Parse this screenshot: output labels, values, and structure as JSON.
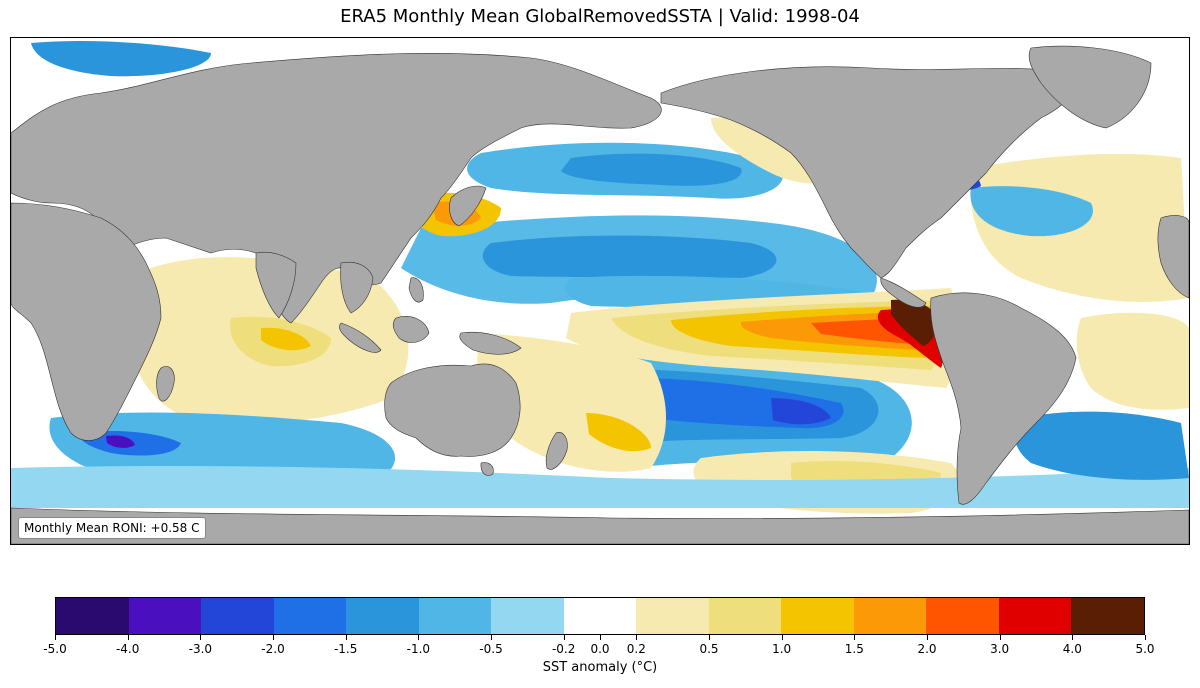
{
  "title": "ERA5 Monthly Mean GlobalRemovedSSTA | Valid: 1998-04",
  "roni_text": "Monthly Mean RONI: +0.58 C",
  "colorbar": {
    "label": "SST anomaly (°C)",
    "ticks": [
      "-5.0",
      "-4.0",
      "-3.0",
      "-2.0",
      "-1.5",
      "-1.0",
      "-0.5",
      "-0.2",
      "0.0",
      "0.2",
      "0.5",
      "1.0",
      "1.5",
      "2.0",
      "3.0",
      "4.0",
      "5.0"
    ],
    "bounds": [
      -5.0,
      -4.0,
      -3.0,
      -2.0,
      -1.5,
      -1.0,
      -0.5,
      -0.2,
      0.2,
      0.5,
      1.0,
      1.5,
      2.0,
      3.0,
      4.0,
      5.0
    ],
    "colors": [
      "#2a0a6e",
      "#4a10c0",
      "#2446d8",
      "#1f6fe6",
      "#2b95dc",
      "#4fb6e6",
      "#93d8f0",
      "#ffffff",
      "#f6eab0",
      "#eedf7c",
      "#f5c400",
      "#fb9a06",
      "#ff5500",
      "#e00000",
      "#5a1e05"
    ]
  },
  "map": {
    "land_color": "#a9a9a9",
    "ocean_color": "#ffffff",
    "central_longitude": 180
  }
}
